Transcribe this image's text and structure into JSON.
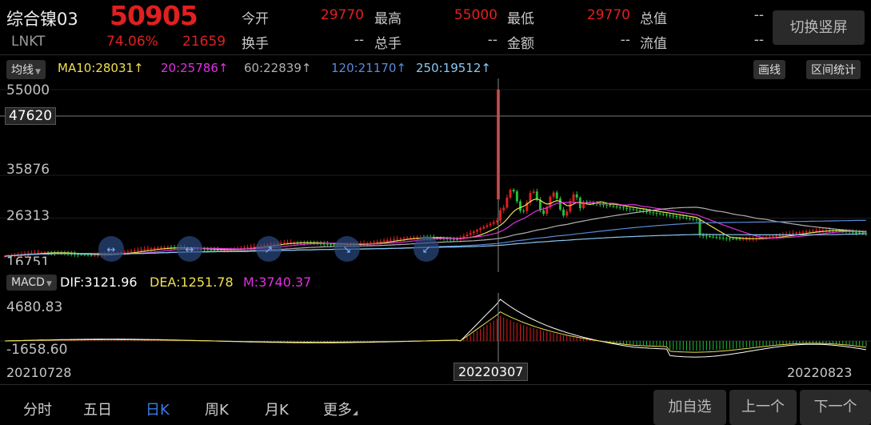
{
  "header": {
    "name": "综合镍03",
    "price": "50905",
    "code": "LNKT",
    "change_pct": "74.06%",
    "change_abs": "21659",
    "fields": [
      {
        "label": "今开",
        "value": "29770"
      },
      {
        "label": "最高",
        "value": "55000"
      },
      {
        "label": "最低",
        "value": "29770"
      },
      {
        "label": "总值",
        "value": "--"
      },
      {
        "label": "换手",
        "value": "--"
      },
      {
        "label": "总手",
        "value": "--"
      },
      {
        "label": "金额",
        "value": "--"
      },
      {
        "label": "流值",
        "value": "--"
      }
    ],
    "switch_label": "切换竖屏"
  },
  "ma_bar": {
    "selector": "均线",
    "ma10": "MA10:28031↑",
    "ma20": "20:25786↑",
    "ma60": "60:22839↑",
    "ma120": "120:21170↑",
    "ma250": "250:19512↑",
    "draw_label": "画线",
    "range_label": "区间统计"
  },
  "price_axis": {
    "top": "55000",
    "cursor": "47620",
    "mid1": "35876",
    "mid2": "26313",
    "low": "16751"
  },
  "macd_bar": {
    "selector": "MACD",
    "dif": "DIF:3121.96",
    "dea": "DEA:1251.78",
    "m": "M:3740.37"
  },
  "macd_axis": {
    "top": "4680.83",
    "bottom": "-1658.60"
  },
  "dates": {
    "start": "20210728",
    "cursor": "20220307",
    "end": "20220823"
  },
  "bottom_tabs": [
    "分时",
    "五日",
    "日K",
    "周K",
    "月K",
    "更多"
  ],
  "bottom_buttons": {
    "add": "加自选",
    "prev": "上一个",
    "next": "下一个"
  },
  "colors": {
    "up": "#e02020",
    "down": "#22c03a",
    "ma10": "#f0e050",
    "ma20": "#e030e0",
    "ma60": "#b0b0b0",
    "ma120": "#5a8ad8",
    "ma250": "#8ac8f0",
    "active_tab": "#3a7ee8"
  }
}
